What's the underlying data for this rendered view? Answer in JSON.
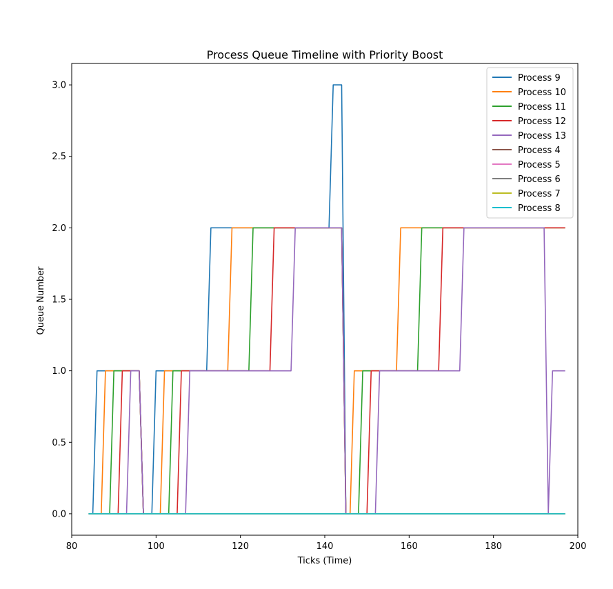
{
  "chart_data": {
    "type": "line",
    "title": "Process Queue Timeline with Priority Boost",
    "xlabel": "Ticks (Time)",
    "ylabel": "Queue Number",
    "xlim": [
      80,
      200
    ],
    "ylim": [
      -0.15,
      3.15
    ],
    "xticks": [
      80,
      100,
      120,
      140,
      160,
      180,
      200
    ],
    "yticks": [
      0.0,
      0.5,
      1.0,
      1.5,
      2.0,
      2.5,
      3.0
    ],
    "xtick_labels": [
      "80",
      "100",
      "120",
      "140",
      "160",
      "180",
      "200"
    ],
    "ytick_labels": [
      "0.0",
      "0.5",
      "1.0",
      "1.5",
      "2.0",
      "2.5",
      "3.0"
    ],
    "grid": false,
    "legend_position": "top-right",
    "series": [
      {
        "name": "Process 9",
        "color": "#1f77b4",
        "x": [
          84,
          85,
          86,
          96,
          97,
          99,
          100,
          112,
          113,
          141,
          142,
          144,
          145,
          146,
          197
        ],
        "y": [
          0,
          0,
          1,
          1,
          0,
          0,
          1,
          1,
          2,
          2,
          3,
          3,
          0,
          0,
          0
        ]
      },
      {
        "name": "Process 10",
        "color": "#ff7f0e",
        "x": [
          84,
          87,
          88,
          96,
          97,
          101,
          102,
          117,
          118,
          144,
          145,
          146,
          147,
          157,
          158,
          197
        ],
        "y": [
          0,
          0,
          1,
          1,
          0,
          0,
          1,
          1,
          2,
          2,
          0,
          0,
          1,
          1,
          2,
          2
        ]
      },
      {
        "name": "Process 11",
        "color": "#2ca02c",
        "x": [
          84,
          89,
          90,
          96,
          97,
          103,
          104,
          122,
          123,
          144,
          145,
          148,
          149,
          162,
          163,
          197
        ],
        "y": [
          0,
          0,
          1,
          1,
          0,
          0,
          1,
          1,
          2,
          2,
          0,
          0,
          1,
          1,
          2,
          2
        ]
      },
      {
        "name": "Process 12",
        "color": "#d62728",
        "x": [
          84,
          91,
          92,
          96,
          97,
          105,
          106,
          127,
          128,
          144,
          145,
          150,
          151,
          167,
          168,
          197
        ],
        "y": [
          0,
          0,
          1,
          1,
          0,
          0,
          1,
          1,
          2,
          2,
          0,
          0,
          1,
          1,
          2,
          2
        ]
      },
      {
        "name": "Process 13",
        "color": "#9467bd",
        "x": [
          84,
          93,
          94,
          96,
          97,
          107,
          108,
          132,
          133,
          144,
          145,
          152,
          153,
          172,
          173,
          192,
          193,
          194,
          197
        ],
        "y": [
          0,
          0,
          1,
          1,
          0,
          0,
          1,
          1,
          2,
          2,
          0,
          0,
          1,
          1,
          2,
          2,
          0,
          1,
          1
        ]
      },
      {
        "name": "Process 4",
        "color": "#8c564b",
        "x": [
          84,
          197
        ],
        "y": [
          0,
          0
        ]
      },
      {
        "name": "Process 5",
        "color": "#e377c2",
        "x": [
          84,
          197
        ],
        "y": [
          0,
          0
        ]
      },
      {
        "name": "Process 6",
        "color": "#7f7f7f",
        "x": [
          84,
          197
        ],
        "y": [
          0,
          0
        ]
      },
      {
        "name": "Process 7",
        "color": "#bcbd22",
        "x": [
          84,
          197
        ],
        "y": [
          0,
          0
        ]
      },
      {
        "name": "Process 8",
        "color": "#17becf",
        "x": [
          84,
          197
        ],
        "y": [
          0,
          0
        ]
      }
    ]
  }
}
